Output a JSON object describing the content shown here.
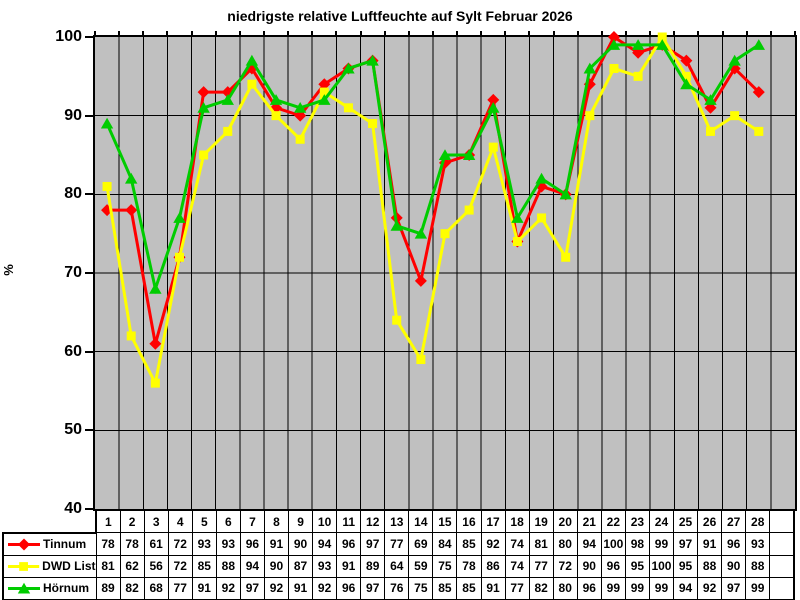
{
  "title": "niedrigste relative Luftfeuchte auf Sylt Februar 2026",
  "chart_data": {
    "type": "line",
    "title": "niedrigste relative Luftfeuchte auf Sylt Februar 2026",
    "xlabel": "",
    "ylabel": "%",
    "ylim": [
      40,
      100
    ],
    "y_ticks": [
      100,
      90,
      80,
      70,
      60,
      50,
      40
    ],
    "grid": true,
    "plot_background": "#C0C0C0",
    "grid_color": "#000000",
    "legend_position": "table-left",
    "categories": [
      "1",
      "2",
      "3",
      "4",
      "5",
      "6",
      "7",
      "8",
      "9",
      "10",
      "11",
      "12",
      "13",
      "14",
      "15",
      "16",
      "17",
      "18",
      "19",
      "20",
      "21",
      "22",
      "23",
      "24",
      "25",
      "26",
      "27",
      "28"
    ],
    "series": [
      {
        "name": "Tinnum",
        "color": "#FF0000",
        "marker": "diamond",
        "values": [
          78,
          78,
          61,
          72,
          93,
          93,
          96,
          91,
          90,
          94,
          96,
          97,
          77,
          69,
          84,
          85,
          92,
          74,
          81,
          80,
          94,
          100,
          98,
          99,
          97,
          91,
          96,
          93
        ]
      },
      {
        "name": "DWD List",
        "color": "#FFFF00",
        "marker": "square",
        "values": [
          81,
          62,
          56,
          72,
          85,
          88,
          94,
          90,
          87,
          93,
          91,
          89,
          64,
          59,
          75,
          78,
          86,
          74,
          77,
          72,
          90,
          96,
          95,
          100,
          95,
          88,
          90,
          88
        ]
      },
      {
        "name": "Hörnum",
        "color": "#00CC00",
        "marker": "triangle",
        "values": [
          89,
          82,
          68,
          77,
          91,
          92,
          97,
          92,
          91,
          92,
          96,
          97,
          76,
          75,
          85,
          85,
          91,
          77,
          82,
          80,
          96,
          99,
          99,
          99,
          94,
          92,
          97,
          99
        ]
      }
    ]
  }
}
